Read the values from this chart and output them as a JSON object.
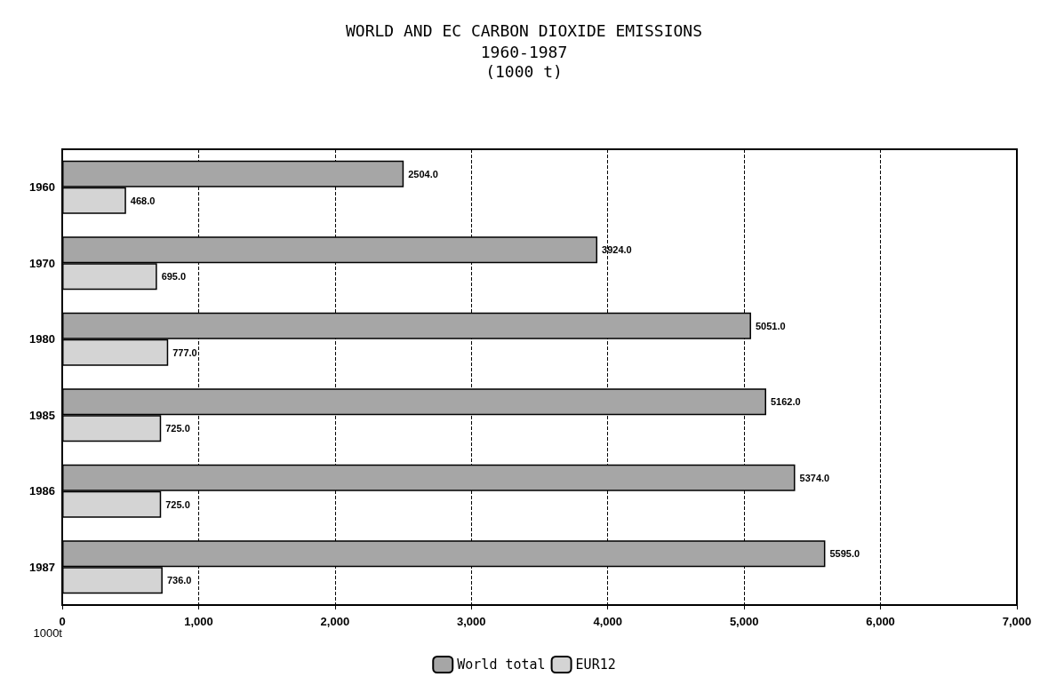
{
  "chart_data": {
    "type": "bar",
    "orientation": "horizontal",
    "title": "WORLD AND EC CARBON DIOXIDE EMISSIONS",
    "subtitle": "1960-1987\n(1000 t)",
    "ylabel": "1000t",
    "categories": [
      "1960",
      "1970",
      "1980",
      "1985",
      "1986",
      "1987"
    ],
    "series": [
      {
        "name": "World total",
        "color": "#a6a6a6",
        "values": [
          2504,
          3924,
          5051,
          5162,
          5374,
          5595
        ],
        "value_labels": [
          "2504.0",
          "3924.0",
          "5051.0",
          "5162.0",
          "5374.0",
          "5595.0"
        ]
      },
      {
        "name": "EUR12",
        "color": "#d4d4d4",
        "values": [
          468,
          695,
          777,
          725,
          725,
          736
        ],
        "value_labels": [
          "468.0",
          "695.0",
          "777.0",
          "725.0",
          "725.0",
          "736.0"
        ]
      }
    ],
    "xlim": [
      0,
      7000
    ],
    "xticks": [
      0,
      {
        "value": 1000,
        "label": "1,000"
      },
      {
        "value": 2000,
        "label": "2,000"
      },
      {
        "value": 3000,
        "label": "3,000"
      },
      {
        "value": 4000,
        "label": "4,000"
      },
      {
        "value": 5000,
        "label": "5,000"
      },
      {
        "value": 6000,
        "label": "6,000"
      },
      {
        "value": 7000,
        "label": "7,000"
      }
    ],
    "grid": "x",
    "legend": "bottom"
  }
}
